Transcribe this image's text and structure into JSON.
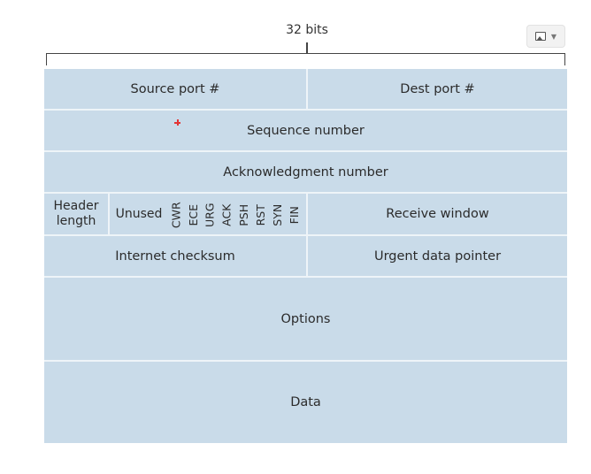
{
  "header": {
    "width_label": "32 bits"
  },
  "toolbar": {
    "image_icon": "image-icon",
    "caret_icon": "chevron-down-icon"
  },
  "segment": {
    "row1": {
      "source_port": "Source port #",
      "dest_port": "Dest port #"
    },
    "row2": {
      "sequence": "Sequence number"
    },
    "row3": {
      "ack": "Acknowledgment number"
    },
    "row4": {
      "header_length_line1": "Header",
      "header_length_line2": "length",
      "unused": "Unused",
      "flags": [
        "CWR",
        "ECE",
        "URG",
        "ACK",
        "PSH",
        "RST",
        "SYN",
        "FIN"
      ],
      "receive_window": "Receive window"
    },
    "row5": {
      "checksum": "Internet checksum",
      "urgent": "Urgent data pointer"
    },
    "options": "Options",
    "data": "Data"
  },
  "colors": {
    "field_fill": "#c9dbe9",
    "divider": "#eef4f8"
  }
}
